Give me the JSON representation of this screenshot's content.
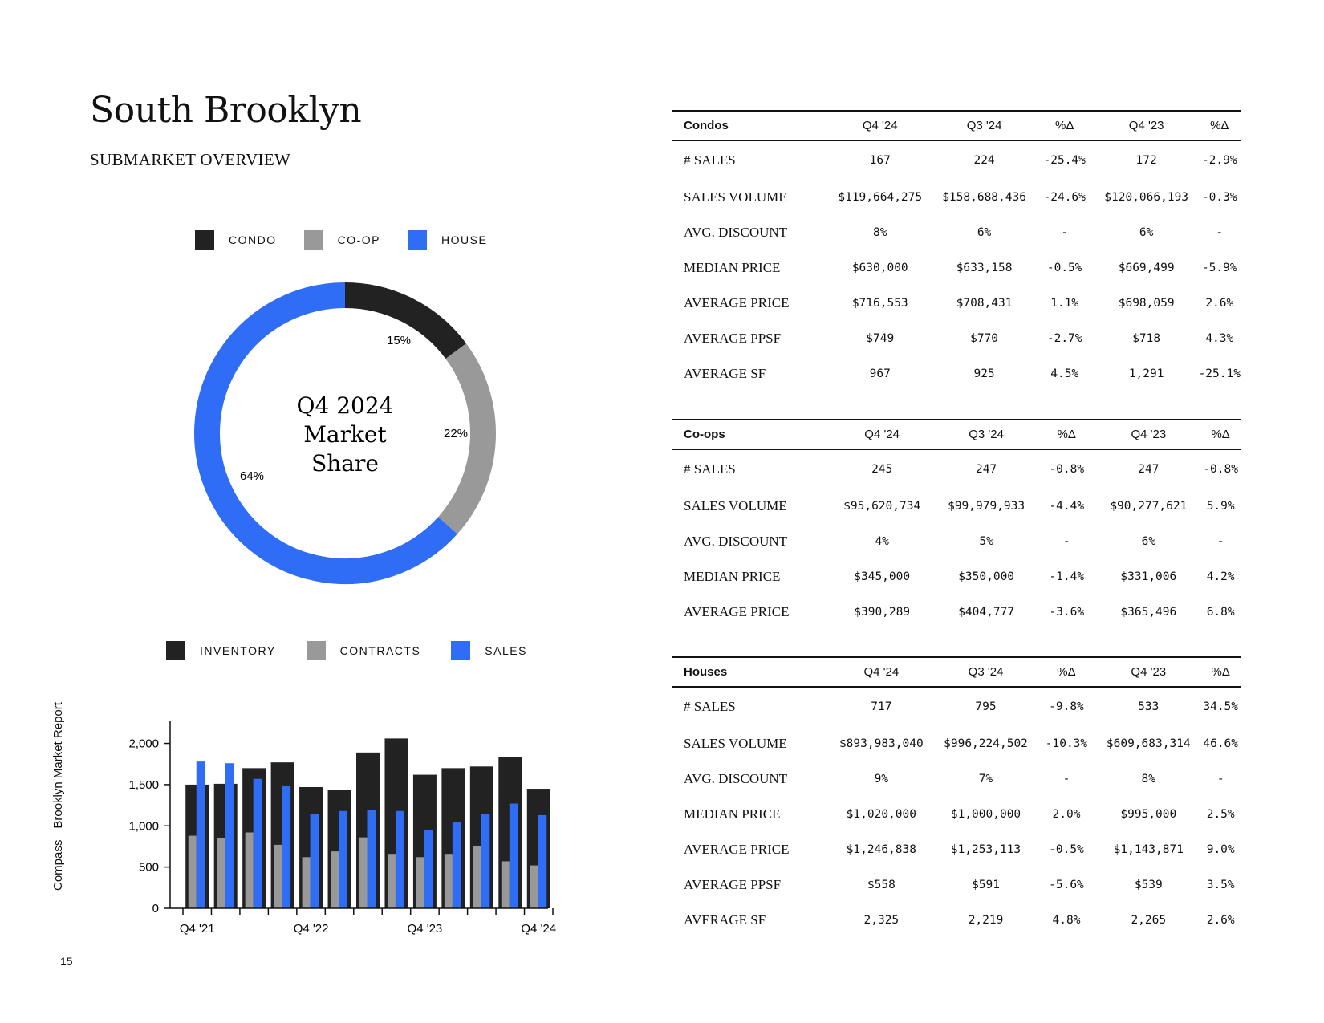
{
  "header": {
    "title": "South Brooklyn",
    "subtitle": "SUBMARKET OVERVIEW"
  },
  "sidebar": {
    "brand": "Compass",
    "report": "Brooklyn Market Report"
  },
  "page_number": "15",
  "donut_center": {
    "line1": "Q4 2024",
    "line2": "Market",
    "line3": "Share"
  },
  "colors": {
    "condo": "#222222",
    "coop": "#999999",
    "house": "#2f6df6",
    "inventory": "#222222",
    "contracts": "#999999",
    "sales": "#2f6df6"
  },
  "chart_data": [
    {
      "type": "pie",
      "variant": "donut",
      "legend": [
        "CONDO",
        "CO-OP",
        "HOUSE"
      ],
      "slices": [
        {
          "name": "CONDO",
          "value": 15,
          "label": "15%"
        },
        {
          "name": "CO-OP",
          "value": 22,
          "label": "22%"
        },
        {
          "name": "HOUSE",
          "value": 64,
          "label": "64%"
        }
      ]
    },
    {
      "type": "bar",
      "legend": [
        "INVENTORY",
        "CONTRACTS",
        "SALES"
      ],
      "tick_labels_x": [
        "Q4 '21",
        "Q4 '22",
        "Q4 '23",
        "Q4 '24"
      ],
      "yticks": [
        "0",
        "500",
        "1,000",
        "1,500",
        "2,000"
      ],
      "ytick_values": [
        0,
        500,
        1000,
        1500,
        2000
      ],
      "ylim": [
        0,
        2200
      ],
      "series": [
        {
          "name": "INVENTORY",
          "values": [
            1500,
            1510,
            1700,
            1770,
            1470,
            1440,
            1890,
            2060,
            1620,
            1700,
            1720,
            1840,
            1450
          ]
        },
        {
          "name": "CONTRACTS",
          "values": [
            880,
            850,
            920,
            770,
            620,
            690,
            860,
            660,
            620,
            660,
            750,
            570,
            520
          ]
        },
        {
          "name": "SALES",
          "values": [
            1780,
            1760,
            1570,
            1490,
            1140,
            1180,
            1190,
            1180,
            950,
            1050,
            1140,
            1270,
            1130
          ]
        }
      ]
    }
  ],
  "tables": [
    {
      "id": "condos",
      "headers": [
        "Condos",
        "Q4 '24",
        "Q3 '24",
        "%Δ",
        "Q4 '23",
        "%Δ"
      ],
      "rows": [
        [
          "# SALES",
          "167",
          "224",
          "-25.4%",
          "172",
          "-2.9%"
        ],
        [
          "SALES VOLUME",
          "$119,664,275",
          "$158,688,436",
          "-24.6%",
          "$120,066,193",
          "-0.3%"
        ],
        [
          "AVG. DISCOUNT",
          "8%",
          "6%",
          "-",
          "6%",
          "-"
        ],
        [
          "MEDIAN PRICE",
          "$630,000",
          "$633,158",
          "-0.5%",
          "$669,499",
          "-5.9%"
        ],
        [
          "AVERAGE PRICE",
          "$716,553",
          "$708,431",
          "1.1%",
          "$698,059",
          "2.6%"
        ],
        [
          "AVERAGE PPSF",
          "$749",
          "$770",
          "-2.7%",
          "$718",
          "4.3%"
        ],
        [
          "AVERAGE SF",
          "967",
          "925",
          "4.5%",
          "1,291",
          "-25.1%"
        ]
      ]
    },
    {
      "id": "coops",
      "headers": [
        "Co-ops",
        "Q4 '24",
        "Q3 '24",
        "%Δ",
        "Q4 '23",
        "%Δ"
      ],
      "rows": [
        [
          "# SALES",
          "245",
          "247",
          "-0.8%",
          "247",
          "-0.8%"
        ],
        [
          "SALES VOLUME",
          "$95,620,734",
          "$99,979,933",
          "-4.4%",
          "$90,277,621",
          "5.9%"
        ],
        [
          "AVG. DISCOUNT",
          "4%",
          "5%",
          "-",
          "6%",
          "-"
        ],
        [
          "MEDIAN PRICE",
          "$345,000",
          "$350,000",
          "-1.4%",
          "$331,006",
          "4.2%"
        ],
        [
          "AVERAGE PRICE",
          "$390,289",
          "$404,777",
          "-3.6%",
          "$365,496",
          "6.8%"
        ]
      ]
    },
    {
      "id": "houses",
      "headers": [
        "Houses",
        "Q4 '24",
        "Q3 '24",
        "%Δ",
        "Q4 '23",
        "%Δ"
      ],
      "rows": [
        [
          "# SALES",
          "717",
          "795",
          "-9.8%",
          "533",
          "34.5%"
        ],
        [
          "SALES VOLUME",
          "$893,983,040",
          "$996,224,502",
          "-10.3%",
          "$609,683,314",
          "46.6%"
        ],
        [
          "AVG. DISCOUNT",
          "9%",
          "7%",
          "-",
          "8%",
          "-"
        ],
        [
          "MEDIAN PRICE",
          "$1,020,000",
          "$1,000,000",
          "2.0%",
          "$995,000",
          "2.5%"
        ],
        [
          "AVERAGE PRICE",
          "$1,246,838",
          "$1,253,113",
          "-0.5%",
          "$1,143,871",
          "9.0%"
        ],
        [
          "AVERAGE PPSF",
          "$558",
          "$591",
          "-5.6%",
          "$539",
          "3.5%"
        ],
        [
          "AVERAGE SF",
          "2,325",
          "2,219",
          "4.8%",
          "2,265",
          "2.6%"
        ]
      ]
    }
  ]
}
